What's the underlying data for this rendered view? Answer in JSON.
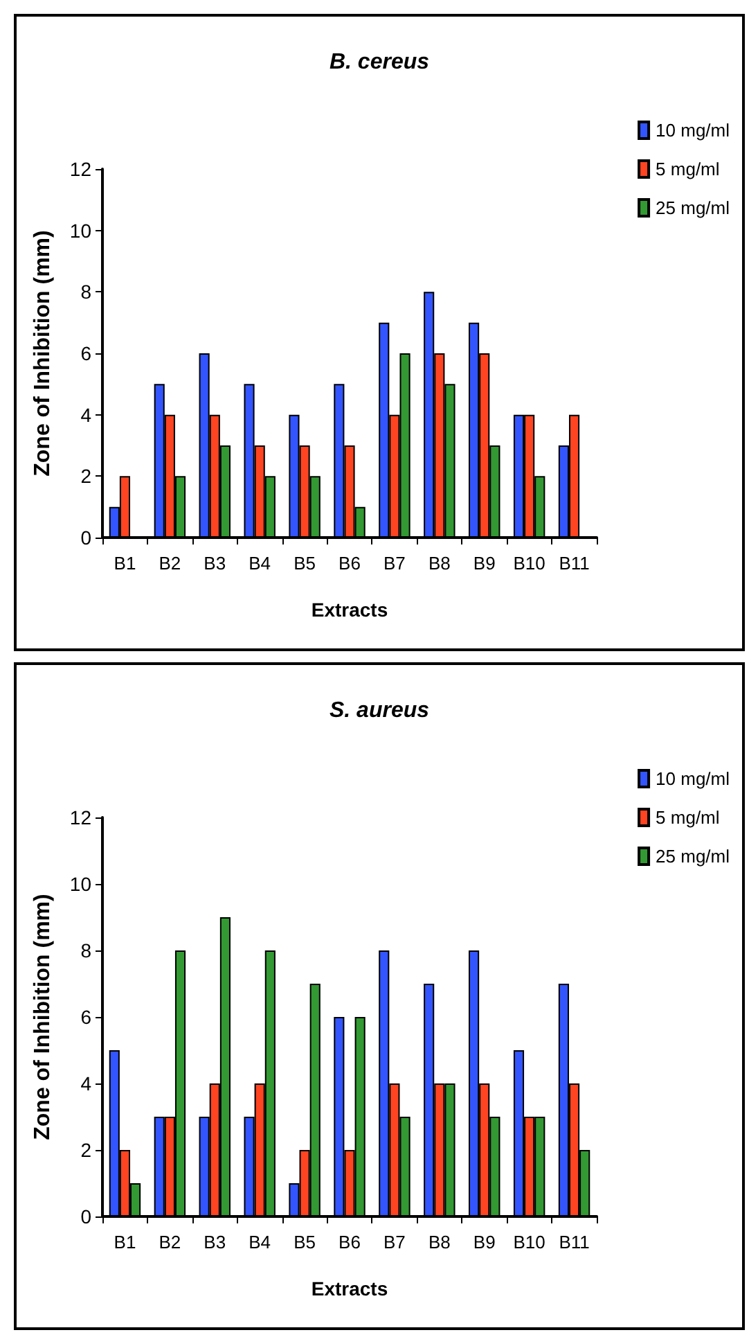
{
  "chart_data": [
    {
      "type": "bar",
      "title": "B. cereus",
      "xlabel": "Extracts",
      "ylabel": "Zone of Inhibition (mm)",
      "categories": [
        "B1",
        "B2",
        "B3",
        "B4",
        "B5",
        "B6",
        "B7",
        "B8",
        "B9",
        "B10",
        "B11"
      ],
      "ylim": [
        0,
        12
      ],
      "yticks": [
        0,
        2,
        4,
        6,
        8,
        10,
        12
      ],
      "grid": false,
      "legend": "top right",
      "series": [
        {
          "name": "10 mg/ml",
          "color": "#3355ff",
          "values": [
            1,
            5,
            6,
            5,
            4,
            5,
            7,
            8,
            7,
            4,
            3
          ]
        },
        {
          "name": "5 mg/ml",
          "color": "#ff4422",
          "values": [
            2,
            4,
            4,
            3,
            3,
            3,
            4,
            6,
            6,
            4,
            4
          ]
        },
        {
          "name": "25 mg/ml",
          "color": "#339933",
          "values": [
            null,
            2,
            3,
            2,
            2,
            1,
            6,
            5,
            3,
            2,
            null
          ]
        }
      ]
    },
    {
      "type": "bar",
      "title": "S. aureus",
      "xlabel": "Extracts",
      "ylabel": "Zone of Inhibition (mm)",
      "categories": [
        "B1",
        "B2",
        "B3",
        "B4",
        "B5",
        "B6",
        "B7",
        "B8",
        "B9",
        "B10",
        "B11"
      ],
      "ylim": [
        0,
        12
      ],
      "yticks": [
        0,
        2,
        4,
        6,
        8,
        10,
        12
      ],
      "grid": false,
      "legend": "top right",
      "series": [
        {
          "name": "10 mg/ml",
          "color": "#3355ff",
          "values": [
            5,
            3,
            3,
            3,
            1,
            6,
            8,
            7,
            8,
            5,
            7
          ]
        },
        {
          "name": "5 mg/ml",
          "color": "#ff4422",
          "values": [
            2,
            3,
            4,
            4,
            2,
            2,
            4,
            4,
            4,
            3,
            4
          ]
        },
        {
          "name": "25 mg/ml",
          "color": "#339933",
          "values": [
            1,
            8,
            9,
            8,
            7,
            6,
            3,
            4,
            3,
            3,
            2
          ]
        }
      ]
    }
  ]
}
